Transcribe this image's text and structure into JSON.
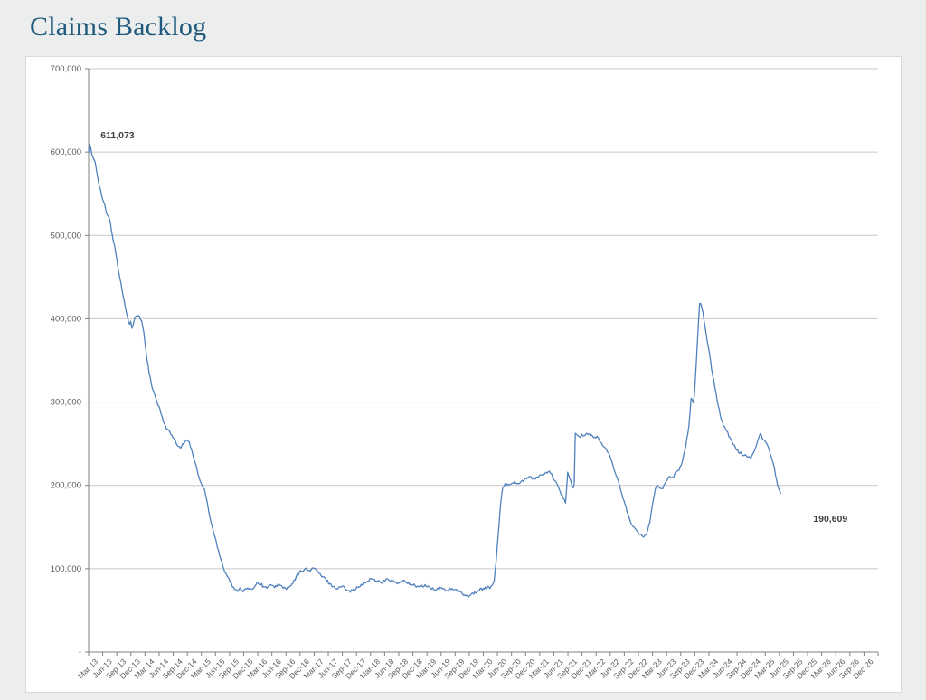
{
  "page": {
    "title": "Claims Backlog",
    "title_color": "#1E5B7E",
    "background": "#ECEDED"
  },
  "chart_data": {
    "type": "line",
    "title": "Claims Backlog",
    "xlabel": "",
    "ylabel": "",
    "grid": true,
    "legend": "none",
    "series_name": "Claims Backlog",
    "line_color": "#4F81BD",
    "grid_color": "#C8C8C8",
    "axis_color": "#808080",
    "tick_label_color": "#595959",
    "callout_color": "#3F3F3F",
    "ylim": [
      0,
      700000
    ],
    "y_tick_step": 100000,
    "y_tick_labels": [
      "-",
      "100,000",
      "200,000",
      "300,000",
      "400,000",
      "500,000",
      "600,000",
      "700,000"
    ],
    "x_tick_labels": [
      "Mar-13",
      "Jun-13",
      "Sep-13",
      "Dec-13",
      "Mar-14",
      "Jun-14",
      "Sep-14",
      "Dec-14",
      "Mar-15",
      "Jun-15",
      "Sep-15",
      "Dec-15",
      "Mar-16",
      "Jun-16",
      "Sep-16",
      "Dec-16",
      "Mar-17",
      "Jun-17",
      "Sep-17",
      "Dec-17",
      "Mar-18",
      "Jun-18",
      "Sep-18",
      "Dec-18",
      "Mar-19",
      "Jun-19",
      "Sep-19",
      "Dec-19",
      "Mar-20",
      "Jun-20",
      "Sep-20",
      "Dec-20",
      "Mar-21",
      "Jun-21",
      "Sep-21",
      "Dec-21",
      "Mar-22",
      "Jun-22",
      "Sep-22",
      "Dec-22",
      "Mar-23",
      "Jun-23",
      "Sep-23",
      "Dec-23",
      "Mar-24",
      "Jun-24",
      "Sep-24",
      "Dec-24",
      "Mar-25",
      "Jun-25",
      "Sep-25",
      "Dec-25",
      "Mar-26",
      "Jun-26",
      "Sep-26",
      "Dec-26"
    ],
    "first_value": 611073,
    "last_value": 190609,
    "callouts": [
      {
        "text": "611,073",
        "q": 0.85,
        "v": 616500
      },
      {
        "text": "190,609",
        "q": 51.4,
        "v": 156300
      }
    ],
    "end_q": 49.1,
    "jitter": 1700,
    "keypoints": [
      [
        0.0,
        600000
      ],
      [
        0.09,
        611073
      ],
      [
        0.25,
        594000
      ],
      [
        0.45,
        589000
      ],
      [
        0.7,
        565000
      ],
      [
        0.95,
        546000
      ],
      [
        1.15,
        535000
      ],
      [
        1.32,
        524000
      ],
      [
        1.5,
        519000
      ],
      [
        1.7,
        499000
      ],
      [
        1.95,
        477000
      ],
      [
        2.15,
        455000
      ],
      [
        2.38,
        434000
      ],
      [
        2.6,
        414000
      ],
      [
        2.78,
        402000
      ],
      [
        2.9,
        392000
      ],
      [
        3.0,
        397000
      ],
      [
        3.1,
        387000
      ],
      [
        3.3,
        402000
      ],
      [
        3.55,
        404000
      ],
      [
        3.75,
        397000
      ],
      [
        3.88,
        389000
      ],
      [
        4.05,
        364000
      ],
      [
        4.25,
        339000
      ],
      [
        4.5,
        317000
      ],
      [
        5.0,
        293000
      ],
      [
        5.45,
        271000
      ],
      [
        5.85,
        261000
      ],
      [
        6.2,
        251000
      ],
      [
        6.45,
        245000
      ],
      [
        6.75,
        250000
      ],
      [
        7.0,
        256000
      ],
      [
        7.25,
        247000
      ],
      [
        7.5,
        231000
      ],
      [
        7.9,
        205000
      ],
      [
        8.25,
        193000
      ],
      [
        8.65,
        158000
      ],
      [
        9.15,
        126000
      ],
      [
        9.6,
        99000
      ],
      [
        9.95,
        88000
      ],
      [
        10.25,
        77000
      ],
      [
        10.5,
        73000
      ],
      [
        10.75,
        77000
      ],
      [
        11.0,
        73000
      ],
      [
        11.25,
        77000
      ],
      [
        11.5,
        74000
      ],
      [
        11.75,
        79000
      ],
      [
        12.0,
        84000
      ],
      [
        12.25,
        81000
      ],
      [
        12.55,
        77000
      ],
      [
        12.85,
        80000
      ],
      [
        13.15,
        78000
      ],
      [
        13.45,
        81000
      ],
      [
        13.75,
        78000
      ],
      [
        14.1,
        76000
      ],
      [
        14.45,
        81000
      ],
      [
        14.75,
        91000
      ],
      [
        15.05,
        97000
      ],
      [
        15.35,
        100000
      ],
      [
        15.6,
        97000
      ],
      [
        15.9,
        101000
      ],
      [
        16.2,
        98000
      ],
      [
        16.5,
        91000
      ],
      [
        16.8,
        88000
      ],
      [
        17.1,
        82000
      ],
      [
        17.4,
        78000
      ],
      [
        17.65,
        76000
      ],
      [
        17.95,
        79000
      ],
      [
        18.3,
        76000
      ],
      [
        18.6,
        73000
      ],
      [
        18.95,
        76000
      ],
      [
        19.25,
        79000
      ],
      [
        19.6,
        83000
      ],
      [
        20.0,
        88000
      ],
      [
        20.4,
        86000
      ],
      [
        20.8,
        84000
      ],
      [
        21.15,
        87000
      ],
      [
        21.55,
        85000
      ],
      [
        21.95,
        82000
      ],
      [
        22.3,
        85000
      ],
      [
        22.7,
        83000
      ],
      [
        23.1,
        80000
      ],
      [
        23.5,
        78000
      ],
      [
        23.9,
        80000
      ],
      [
        24.25,
        77000
      ],
      [
        24.65,
        74000
      ],
      [
        25.0,
        77000
      ],
      [
        25.4,
        74000
      ],
      [
        25.8,
        76000
      ],
      [
        26.2,
        73000
      ],
      [
        26.55,
        70000
      ],
      [
        26.9,
        67000
      ],
      [
        27.2,
        70000
      ],
      [
        27.6,
        73000
      ],
      [
        27.95,
        76000
      ],
      [
        28.35,
        78000
      ],
      [
        28.55,
        77000
      ],
      [
        28.75,
        83000
      ],
      [
        28.9,
        108000
      ],
      [
        29.05,
        140000
      ],
      [
        29.2,
        172000
      ],
      [
        29.35,
        195000
      ],
      [
        29.5,
        202000
      ],
      [
        29.8,
        201000
      ],
      [
        30.15,
        204000
      ],
      [
        30.5,
        202000
      ],
      [
        30.85,
        206000
      ],
      [
        31.15,
        209000
      ],
      [
        31.3,
        212000
      ],
      [
        31.5,
        206000
      ],
      [
        31.8,
        210000
      ],
      [
        32.1,
        212000
      ],
      [
        32.4,
        214000
      ],
      [
        32.7,
        216000
      ],
      [
        32.95,
        210000
      ],
      [
        33.2,
        201000
      ],
      [
        33.45,
        193000
      ],
      [
        33.7,
        184000
      ],
      [
        33.88,
        179000
      ],
      [
        33.95,
        218000
      ],
      [
        34.1,
        209000
      ],
      [
        34.3,
        200000
      ],
      [
        34.44,
        196000
      ],
      [
        34.52,
        261000
      ],
      [
        34.75,
        258000
      ],
      [
        35.0,
        260000
      ],
      [
        35.3,
        262000
      ],
      [
        35.6,
        261000
      ],
      [
        35.85,
        257000
      ],
      [
        36.1,
        258000
      ],
      [
        36.35,
        251000
      ],
      [
        36.6,
        245000
      ],
      [
        36.85,
        240000
      ],
      [
        37.1,
        229000
      ],
      [
        37.35,
        217000
      ],
      [
        37.6,
        203000
      ],
      [
        37.85,
        189000
      ],
      [
        38.1,
        174000
      ],
      [
        38.35,
        161000
      ],
      [
        38.6,
        151000
      ],
      [
        38.85,
        145000
      ],
      [
        39.1,
        141000
      ],
      [
        39.35,
        139000
      ],
      [
        39.5,
        140000
      ],
      [
        39.65,
        146000
      ],
      [
        39.8,
        156000
      ],
      [
        39.95,
        172000
      ],
      [
        40.1,
        188000
      ],
      [
        40.22,
        197000
      ],
      [
        40.35,
        201000
      ],
      [
        40.5,
        197000
      ],
      [
        40.65,
        195000
      ],
      [
        40.8,
        199000
      ],
      [
        40.95,
        204000
      ],
      [
        41.1,
        209000
      ],
      [
        41.25,
        211000
      ],
      [
        41.4,
        209000
      ],
      [
        41.55,
        213000
      ],
      [
        41.7,
        217000
      ],
      [
        41.85,
        219000
      ],
      [
        42.0,
        222000
      ],
      [
        42.15,
        231000
      ],
      [
        42.3,
        242000
      ],
      [
        42.45,
        256000
      ],
      [
        42.55,
        268000
      ],
      [
        42.62,
        280000
      ],
      [
        42.7,
        295000
      ],
      [
        42.76,
        312000
      ],
      [
        42.85,
        298000
      ],
      [
        42.95,
        305000
      ],
      [
        43.05,
        330000
      ],
      [
        43.15,
        360000
      ],
      [
        43.25,
        392000
      ],
      [
        43.35,
        421000
      ],
      [
        43.45,
        415000
      ],
      [
        43.55,
        409000
      ],
      [
        43.65,
        400000
      ],
      [
        43.8,
        383000
      ],
      [
        44.0,
        362000
      ],
      [
        44.2,
        340000
      ],
      [
        44.35,
        325000
      ],
      [
        44.5,
        311000
      ],
      [
        44.65,
        297000
      ],
      [
        44.8,
        285000
      ],
      [
        44.95,
        276000
      ],
      [
        45.1,
        270000
      ],
      [
        45.3,
        264000
      ],
      [
        45.5,
        257000
      ],
      [
        45.7,
        250000
      ],
      [
        45.9,
        245000
      ],
      [
        46.1,
        241000
      ],
      [
        46.3,
        238000
      ],
      [
        46.5,
        236500
      ],
      [
        46.7,
        235000
      ],
      [
        46.9,
        233000
      ],
      [
        47.1,
        237000
      ],
      [
        47.3,
        245000
      ],
      [
        47.5,
        257000
      ],
      [
        47.65,
        261000
      ],
      [
        47.8,
        257000
      ],
      [
        47.95,
        253000
      ],
      [
        48.1,
        250000
      ],
      [
        48.25,
        245000
      ],
      [
        48.4,
        237000
      ],
      [
        48.55,
        227000
      ],
      [
        48.7,
        215000
      ],
      [
        48.85,
        203000
      ],
      [
        48.97,
        195000
      ],
      [
        49.1,
        190609
      ]
    ]
  }
}
